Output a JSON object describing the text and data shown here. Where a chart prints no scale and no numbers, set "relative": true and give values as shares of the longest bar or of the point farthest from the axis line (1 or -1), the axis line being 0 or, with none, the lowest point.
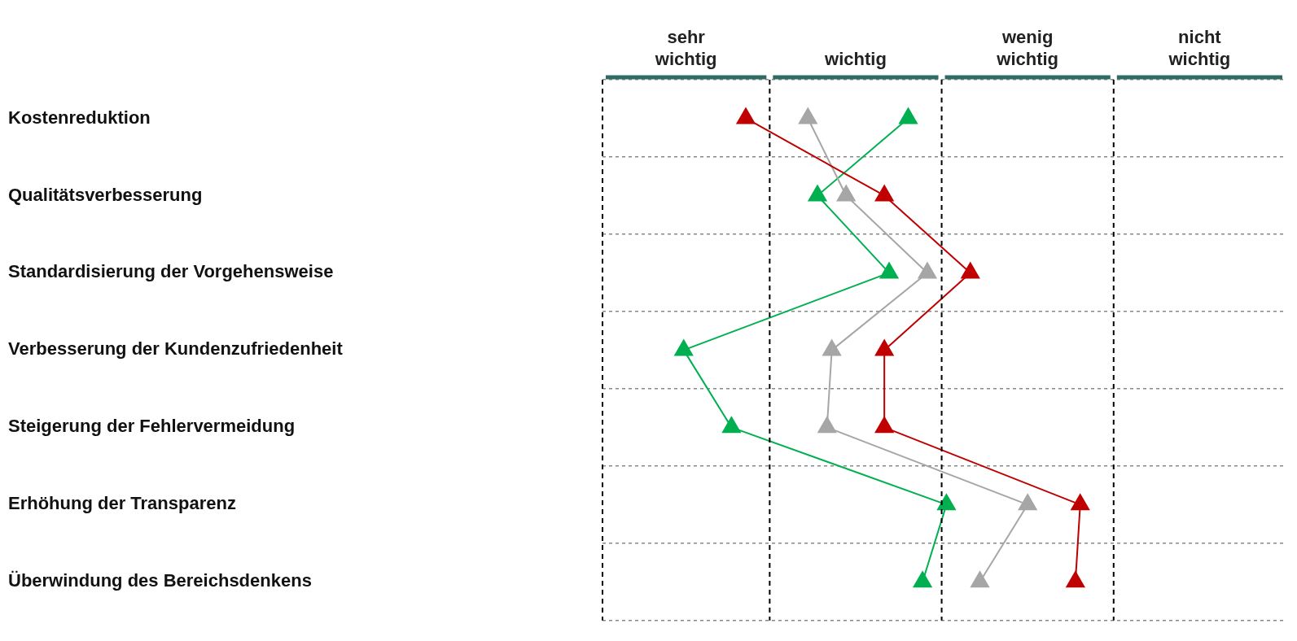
{
  "chart_data": {
    "type": "line",
    "orientation": "horizontal",
    "marker": "triangle",
    "grid": "y",
    "relative": true,
    "categories": [
      "Kostenreduktion",
      "Qualitätsverbesserung",
      "Standardisierung der Vorgehensweise",
      "Verbesserung der Kundenzufriedenheit",
      "Steigerung der Fehlervermeidung",
      "Erhöhung der Transparenz",
      "Überwindung des Bereichsdenkens"
    ],
    "annotations": [
      "sehr wichtig",
      "wichtig",
      "wenig wichtig",
      "nicht wichtig"
    ],
    "ref_lines": [
      {
        "axis": "x",
        "value": 0,
        "color": "#000000",
        "line_style": "dashed"
      },
      {
        "axis": "x",
        "value": 0.35,
        "color": "#000000",
        "line_style": "dashed"
      },
      {
        "axis": "x",
        "value": 0.71,
        "color": "#000000",
        "line_style": "dashed"
      },
      {
        "axis": "x",
        "value": 1.07,
        "color": "#000000",
        "line_style": "dashed"
      }
    ],
    "series": [
      {
        "color": "#c00000",
        "values": [
          0.3,
          0.59,
          0.77,
          0.59,
          0.59,
          1,
          0.99
        ]
      },
      {
        "color": "#a6a6a6",
        "values": [
          0.43,
          0.51,
          0.68,
          0.48,
          0.47,
          0.89,
          0.79
        ]
      },
      {
        "color": "#00b050",
        "values": [
          0.64,
          0.45,
          0.6,
          0.17,
          0.27,
          0.72,
          0.67
        ]
      }
    ]
  }
}
